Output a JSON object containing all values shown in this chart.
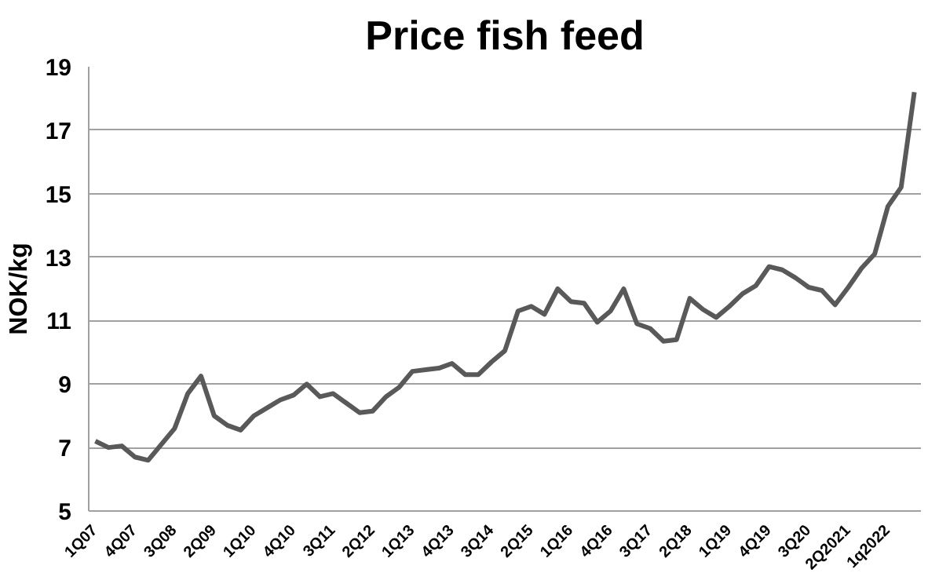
{
  "chart_data": {
    "type": "line",
    "title": "Price fish feed",
    "ylabel": "NOK/kg",
    "categories": [
      "1Q07",
      null,
      null,
      "4Q07",
      null,
      null,
      "3Q08",
      null,
      null,
      "2Q09",
      null,
      null,
      "1Q10",
      null,
      null,
      "4Q10",
      null,
      null,
      "3Q11",
      null,
      null,
      "2Q12",
      null,
      null,
      "1Q13",
      null,
      null,
      "4Q13",
      null,
      null,
      "3Q14",
      null,
      null,
      "2Q15",
      null,
      null,
      "1Q16",
      null,
      null,
      "4Q16",
      null,
      null,
      "3Q17",
      null,
      null,
      "2Q18",
      null,
      null,
      "1Q19",
      null,
      null,
      "4Q19",
      null,
      null,
      "3Q20",
      null,
      null,
      "2Q2021",
      null,
      null,
      "1q2022",
      null,
      null
    ],
    "series": [
      {
        "color": "#595959",
        "values": [
          7.2,
          7.0,
          7.05,
          6.7,
          6.6,
          7.1,
          7.6,
          8.7,
          9.25,
          8.0,
          7.7,
          7.55,
          8.0,
          8.25,
          8.5,
          8.65,
          9.0,
          8.6,
          8.7,
          8.4,
          8.1,
          8.15,
          8.6,
          8.9,
          9.4,
          9.45,
          9.5,
          9.65,
          9.3,
          9.3,
          9.7,
          10.05,
          11.3,
          11.45,
          11.2,
          12.0,
          11.6,
          11.55,
          10.95,
          11.3,
          12.0,
          10.9,
          10.75,
          10.35,
          10.4,
          11.7,
          11.35,
          11.1,
          11.45,
          11.85,
          12.1,
          12.7,
          12.6,
          12.35,
          12.05,
          11.95,
          11.5,
          12.05,
          12.65,
          13.1,
          14.6,
          15.2,
          18.2
        ]
      }
    ],
    "ylim": [
      5,
      19
    ],
    "yticks": [
      5,
      7,
      9,
      11,
      13,
      15,
      17,
      19
    ],
    "grid": "y",
    "marker": "none",
    "line_style": "solid"
  }
}
